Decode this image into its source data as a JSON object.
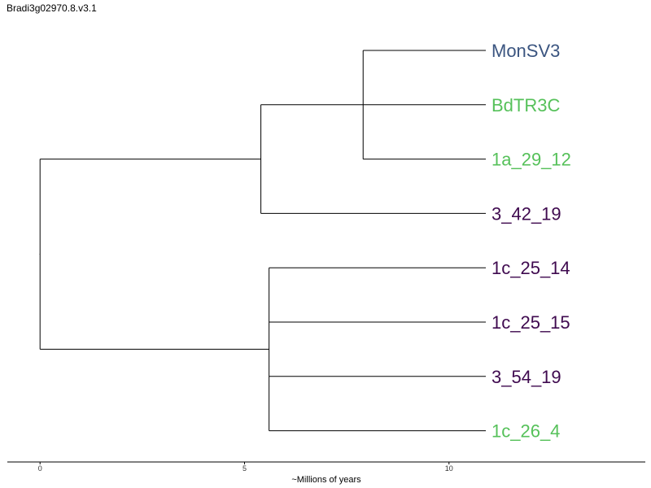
{
  "title": "Bradi3g02970.8.v3.1",
  "colors": {
    "blue": "#3b5580",
    "green": "#56c15a",
    "purple": "#3f0a4f"
  },
  "chart_data": {
    "type": "dendrogram",
    "xlabel": "~Millions of years",
    "xticks": [
      0,
      5,
      10
    ],
    "xlim": [
      -0.8,
      14.8
    ],
    "root_x": 0,
    "leaves": [
      {
        "name": "MonSV3",
        "color": "blue",
        "x": 10.9
      },
      {
        "name": "BdTR3C",
        "color": "green",
        "x": 10.9
      },
      {
        "name": "1a_29_12",
        "color": "green",
        "x": 10.9
      },
      {
        "name": "3_42_19",
        "color": "purple",
        "x": 10.9
      },
      {
        "name": "1c_25_14",
        "color": "purple",
        "x": 10.9
      },
      {
        "name": "1c_25_15",
        "color": "purple",
        "x": 10.9
      },
      {
        "name": "3_54_19",
        "color": "purple",
        "x": 10.9
      },
      {
        "name": "1c_26_4",
        "color": "purple_green",
        "x": 10.9
      }
    ],
    "clades": [
      {
        "id": "A",
        "x": 7.9,
        "children": [
          0,
          1,
          2
        ]
      },
      {
        "id": "B",
        "x": 5.4,
        "children": [
          "A",
          3
        ]
      },
      {
        "id": "C",
        "x": 5.6,
        "children": [
          4,
          5,
          6,
          7
        ]
      },
      {
        "id": "root",
        "x": 0.0,
        "children": [
          "B",
          "C"
        ]
      }
    ]
  }
}
